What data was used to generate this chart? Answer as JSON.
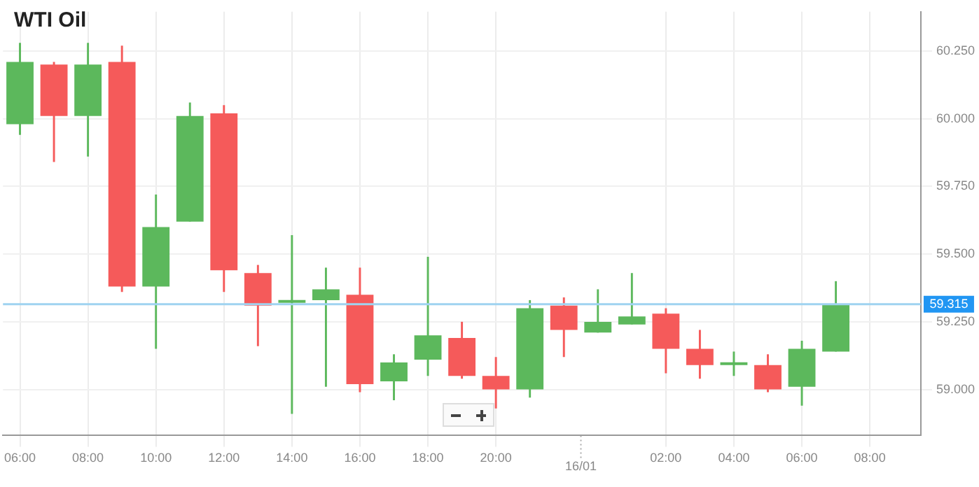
{
  "chart_data": {
    "type": "candlestick",
    "title": "WTI Oil",
    "categories": [
      "06:00",
      null,
      "08:00",
      null,
      "10:00",
      null,
      "12:00",
      null,
      "14:00",
      null,
      "16:00",
      null,
      "18:00",
      null,
      "20:00",
      null,
      null,
      null,
      null,
      "02:00",
      null,
      "04:00",
      null,
      "06:00",
      null,
      "08:00",
      null
    ],
    "ohlc": [
      [
        59.98,
        60.28,
        59.94,
        60.21
      ],
      [
        60.2,
        60.21,
        59.84,
        60.01
      ],
      [
        60.01,
        60.28,
        59.86,
        60.2
      ],
      [
        60.21,
        60.27,
        59.36,
        59.38
      ],
      [
        59.38,
        59.72,
        59.15,
        59.6
      ],
      [
        59.62,
        60.06,
        59.62,
        60.01
      ],
      [
        60.02,
        60.05,
        59.36,
        59.44
      ],
      [
        59.43,
        59.46,
        59.16,
        59.31
      ],
      [
        59.32,
        59.57,
        58.91,
        59.33
      ],
      [
        59.33,
        59.45,
        59.01,
        59.37
      ],
      [
        59.35,
        59.45,
        58.99,
        59.02
      ],
      [
        59.03,
        59.13,
        58.96,
        59.1
      ],
      [
        59.11,
        59.49,
        59.05,
        59.2
      ],
      [
        59.19,
        59.25,
        59.04,
        59.05
      ],
      [
        59.05,
        59.12,
        58.93,
        59.0
      ],
      [
        59.0,
        59.33,
        58.97,
        59.3
      ],
      [
        59.31,
        59.34,
        59.12,
        59.22
      ],
      [
        59.21,
        59.37,
        59.21,
        59.25
      ],
      [
        59.24,
        59.43,
        59.24,
        59.27
      ],
      [
        59.28,
        59.3,
        59.06,
        59.15
      ],
      [
        59.15,
        59.22,
        59.04,
        59.09
      ],
      [
        59.09,
        59.14,
        59.05,
        59.1
      ],
      [
        59.09,
        59.13,
        58.99,
        59.0
      ],
      [
        59.01,
        59.18,
        58.94,
        59.15
      ],
      [
        59.14,
        59.4,
        59.14,
        59.315
      ],
      null,
      null
    ],
    "colors": [
      "#5cb85c",
      "#f55a5a",
      "#5cb85c",
      "#f55a5a",
      "#5cb85c",
      "#5cb85c",
      "#f55a5a",
      "#f55a5a",
      "#5cb85c",
      "#5cb85c",
      "#f55a5a",
      "#5cb85c",
      "#5cb85c",
      "#f55a5a",
      "#f55a5a",
      "#5cb85c",
      "#f55a5a",
      "#5cb85c",
      "#5cb85c",
      "#f55a5a",
      "#f55a5a",
      "#5cb85c",
      "#f55a5a",
      "#5cb85c",
      "#5cb85c",
      null,
      null
    ],
    "ylim": [
      58.83,
      60.395
    ],
    "yticks": [
      {
        "value": 59,
        "label": "59.000"
      },
      {
        "value": 59.25,
        "label": "59.250"
      },
      {
        "value": 59.5,
        "label": "59.500"
      },
      {
        "value": 59.75,
        "label": "59.750"
      },
      {
        "value": 60,
        "label": "60.000"
      },
      {
        "value": 60.25,
        "label": "60.250"
      }
    ],
    "ref_lines": [
      {
        "axis": "y",
        "value": 59.315,
        "label": "59.315",
        "color": "#9fd3f0"
      }
    ],
    "annotations": [
      "16/01"
    ],
    "grid": true,
    "legend": false
  }
}
